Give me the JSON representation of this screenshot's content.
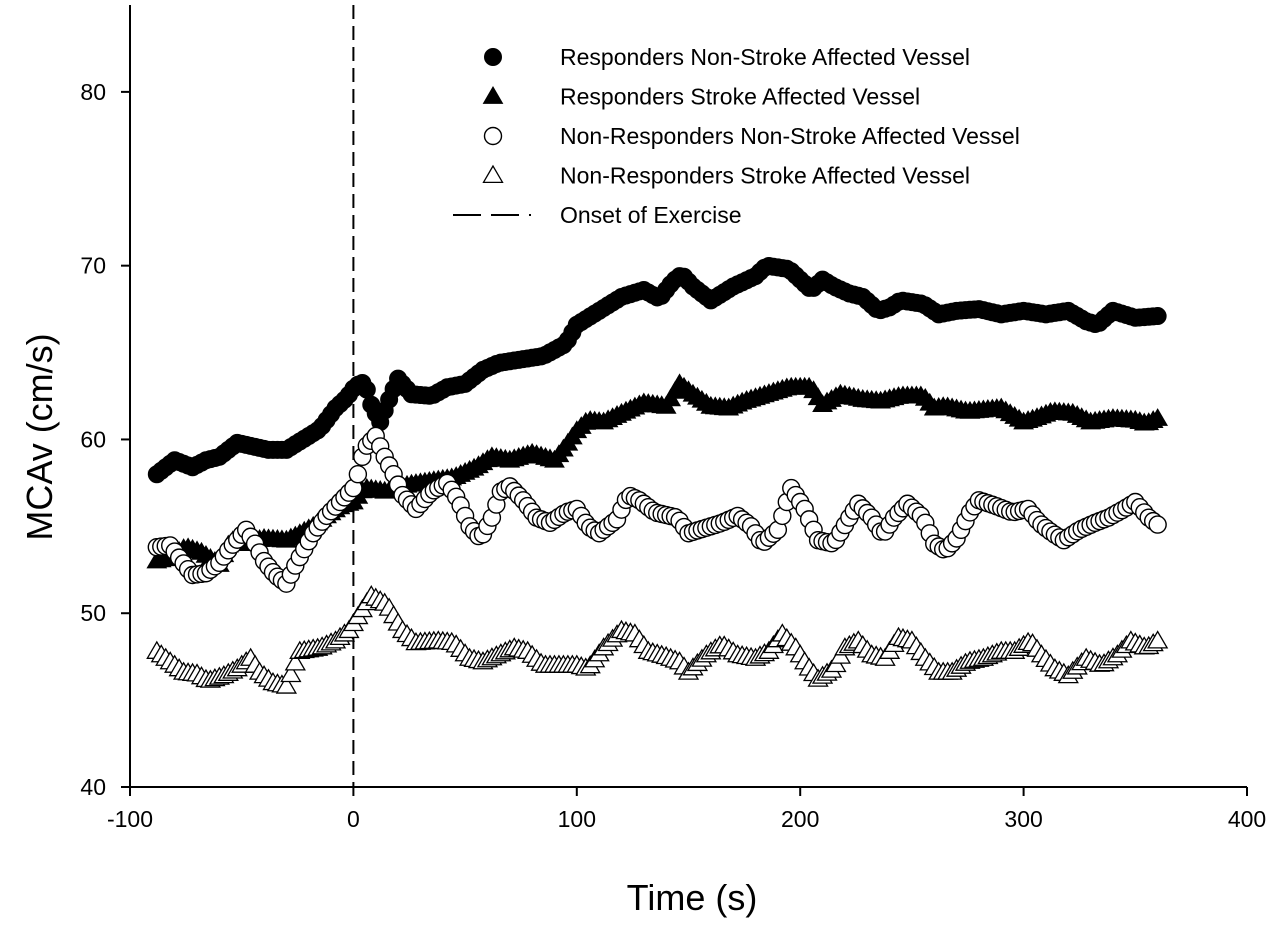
{
  "chart_data": {
    "type": "scatter",
    "title": "",
    "xlabel": "Time (s)",
    "ylabel": "MCAv (cm/s)",
    "xlim": [
      -100,
      400
    ],
    "ylim": [
      40,
      85
    ],
    "x_ticks": [
      -100,
      0,
      100,
      200,
      300,
      400
    ],
    "y_ticks": [
      40,
      50,
      60,
      70,
      80
    ],
    "x_tick_labels": [
      "-100",
      "0",
      "100",
      "200",
      "300",
      "400"
    ],
    "y_tick_labels": [
      "40",
      "50",
      "60",
      "70",
      "80"
    ],
    "grid": false,
    "legend_position": "top-right",
    "reference_lines": [
      {
        "orientation": "vertical",
        "x": 0,
        "style": "dashed",
        "legend": "Onset of Exercise"
      }
    ],
    "legend": [
      {
        "label": "Responders Non-Stroke Affected Vessel",
        "marker": "circle-filled"
      },
      {
        "label": "Responders Stroke Affected Vessel",
        "marker": "triangle-filled"
      },
      {
        "label": "Non-Responders Non-Stroke Affected Vessel",
        "marker": "circle-open"
      },
      {
        "label": "Non-Responders Stroke Affected Vessel",
        "marker": "triangle-open"
      },
      {
        "label": "Onset of Exercise",
        "marker": "dashed-line"
      }
    ],
    "series": [
      {
        "name": "Responders Non-Stroke Affected Vessel",
        "marker": "circle-filled",
        "keypoints": [
          [
            -88,
            58.0
          ],
          [
            -80,
            58.8
          ],
          [
            -72,
            58.4
          ],
          [
            -66,
            58.8
          ],
          [
            -60,
            59.0
          ],
          [
            -52,
            59.8
          ],
          [
            -45,
            59.6
          ],
          [
            -38,
            59.4
          ],
          [
            -30,
            59.4
          ],
          [
            -25,
            59.8
          ],
          [
            -20,
            60.2
          ],
          [
            -15,
            60.6
          ],
          [
            -8,
            61.8
          ],
          [
            -3,
            62.4
          ],
          [
            1,
            63.1
          ],
          [
            5,
            63.3
          ],
          [
            8,
            62.0
          ],
          [
            12,
            61.0
          ],
          [
            15,
            62.0
          ],
          [
            20,
            63.5
          ],
          [
            26,
            62.6
          ],
          [
            35,
            62.5
          ],
          [
            42,
            63.0
          ],
          [
            50,
            63.2
          ],
          [
            58,
            64.0
          ],
          [
            65,
            64.4
          ],
          [
            75,
            64.6
          ],
          [
            85,
            64.8
          ],
          [
            95,
            65.5
          ],
          [
            100,
            66.6
          ],
          [
            110,
            67.4
          ],
          [
            120,
            68.2
          ],
          [
            130,
            68.6
          ],
          [
            137,
            68.1
          ],
          [
            143,
            69.1
          ],
          [
            147,
            69.5
          ],
          [
            152,
            68.8
          ],
          [
            160,
            68.0
          ],
          [
            170,
            68.8
          ],
          [
            180,
            69.4
          ],
          [
            185,
            70.0
          ],
          [
            195,
            69.8
          ],
          [
            200,
            69.2
          ],
          [
            205,
            68.6
          ],
          [
            210,
            69.2
          ],
          [
            215,
            68.8
          ],
          [
            222,
            68.4
          ],
          [
            228,
            68.2
          ],
          [
            235,
            67.4
          ],
          [
            240,
            67.6
          ],
          [
            245,
            68.0
          ],
          [
            255,
            67.8
          ],
          [
            262,
            67.2
          ],
          [
            270,
            67.4
          ],
          [
            280,
            67.5
          ],
          [
            290,
            67.2
          ],
          [
            300,
            67.4
          ],
          [
            310,
            67.2
          ],
          [
            320,
            67.4
          ],
          [
            328,
            66.8
          ],
          [
            333,
            66.6
          ],
          [
            340,
            67.4
          ],
          [
            350,
            67.0
          ],
          [
            360,
            67.1
          ]
        ]
      },
      {
        "name": "Responders Stroke Affected Vessel",
        "marker": "triangle-filled",
        "keypoints": [
          [
            -88,
            53.0
          ],
          [
            -82,
            53.2
          ],
          [
            -75,
            53.8
          ],
          [
            -68,
            53.5
          ],
          [
            -60,
            52.8
          ],
          [
            -55,
            54.2
          ],
          [
            -50,
            54.0
          ],
          [
            -40,
            54.3
          ],
          [
            -30,
            54.2
          ],
          [
            -25,
            54.5
          ],
          [
            -18,
            55.0
          ],
          [
            -12,
            55.6
          ],
          [
            -5,
            56.2
          ],
          [
            0,
            56.4
          ],
          [
            5,
            57.2
          ],
          [
            15,
            57.0
          ],
          [
            25,
            57.4
          ],
          [
            35,
            57.6
          ],
          [
            45,
            57.8
          ],
          [
            55,
            58.4
          ],
          [
            62,
            59.0
          ],
          [
            70,
            58.8
          ],
          [
            80,
            59.2
          ],
          [
            90,
            58.8
          ],
          [
            95,
            59.6
          ],
          [
            100,
            60.5
          ],
          [
            105,
            61.1
          ],
          [
            112,
            61.0
          ],
          [
            120,
            61.5
          ],
          [
            130,
            62.1
          ],
          [
            140,
            61.9
          ],
          [
            146,
            63.2
          ],
          [
            152,
            62.6
          ],
          [
            160,
            61.9
          ],
          [
            168,
            61.8
          ],
          [
            175,
            62.2
          ],
          [
            185,
            62.6
          ],
          [
            195,
            63.0
          ],
          [
            205,
            63.0
          ],
          [
            210,
            62.0
          ],
          [
            218,
            62.6
          ],
          [
            228,
            62.3
          ],
          [
            236,
            62.2
          ],
          [
            245,
            62.5
          ],
          [
            255,
            62.5
          ],
          [
            260,
            61.8
          ],
          [
            265,
            61.9
          ],
          [
            275,
            61.6
          ],
          [
            290,
            61.8
          ],
          [
            300,
            61.0
          ],
          [
            305,
            61.2
          ],
          [
            313,
            61.6
          ],
          [
            322,
            61.5
          ],
          [
            330,
            61.0
          ],
          [
            340,
            61.2
          ],
          [
            350,
            61.1
          ],
          [
            355,
            60.9
          ],
          [
            360,
            61.2
          ]
        ]
      },
      {
        "name": "Non-Responders Non-Stroke Affected Vessel",
        "marker": "circle-open",
        "keypoints": [
          [
            -88,
            53.8
          ],
          [
            -82,
            53.9
          ],
          [
            -78,
            53.2
          ],
          [
            -72,
            52.2
          ],
          [
            -66,
            52.3
          ],
          [
            -60,
            52.9
          ],
          [
            -55,
            53.8
          ],
          [
            -48,
            54.8
          ],
          [
            -44,
            54.0
          ],
          [
            -40,
            53.0
          ],
          [
            -35,
            52.2
          ],
          [
            -30,
            51.7
          ],
          [
            -25,
            53.0
          ],
          [
            -18,
            54.6
          ],
          [
            -12,
            55.6
          ],
          [
            -6,
            56.4
          ],
          [
            0,
            57.2
          ],
          [
            2,
            58.0
          ],
          [
            5,
            59.5
          ],
          [
            10,
            60.2
          ],
          [
            14,
            59.0
          ],
          [
            18,
            58.0
          ],
          [
            22,
            56.8
          ],
          [
            28,
            56.0
          ],
          [
            35,
            57.0
          ],
          [
            42,
            57.5
          ],
          [
            47,
            56.5
          ],
          [
            52,
            55.0
          ],
          [
            57,
            54.3
          ],
          [
            62,
            55.5
          ],
          [
            66,
            57.0
          ],
          [
            70,
            57.3
          ],
          [
            76,
            56.5
          ],
          [
            82,
            55.5
          ],
          [
            88,
            55.2
          ],
          [
            95,
            55.8
          ],
          [
            100,
            56.0
          ],
          [
            105,
            55.0
          ],
          [
            110,
            54.6
          ],
          [
            118,
            55.4
          ],
          [
            123,
            56.8
          ],
          [
            128,
            56.5
          ],
          [
            135,
            55.8
          ],
          [
            145,
            55.5
          ],
          [
            150,
            54.6
          ],
          [
            155,
            54.8
          ],
          [
            165,
            55.2
          ],
          [
            172,
            55.6
          ],
          [
            178,
            55.0
          ],
          [
            183,
            54.0
          ],
          [
            190,
            54.8
          ],
          [
            196,
            57.2
          ],
          [
            202,
            56.0
          ],
          [
            208,
            54.2
          ],
          [
            215,
            54.0
          ],
          [
            222,
            55.5
          ],
          [
            226,
            56.3
          ],
          [
            232,
            55.5
          ],
          [
            237,
            54.5
          ],
          [
            242,
            55.5
          ],
          [
            248,
            56.3
          ],
          [
            255,
            55.5
          ],
          [
            260,
            54.0
          ],
          [
            265,
            53.6
          ],
          [
            270,
            54.3
          ],
          [
            276,
            55.8
          ],
          [
            280,
            56.5
          ],
          [
            287,
            56.2
          ],
          [
            295,
            55.8
          ],
          [
            302,
            56.0
          ],
          [
            307,
            55.2
          ],
          [
            313,
            54.6
          ],
          [
            318,
            54.2
          ],
          [
            325,
            54.8
          ],
          [
            332,
            55.2
          ],
          [
            338,
            55.5
          ],
          [
            345,
            56.0
          ],
          [
            350,
            56.4
          ],
          [
            356,
            55.5
          ],
          [
            360,
            55.1
          ]
        ]
      },
      {
        "name": "Non-Responders Stroke Affected Vessel",
        "marker": "triangle-open",
        "keypoints": [
          [
            -88,
            47.8
          ],
          [
            -82,
            47.2
          ],
          [
            -76,
            46.6
          ],
          [
            -70,
            46.5
          ],
          [
            -65,
            46.1
          ],
          [
            -58,
            46.4
          ],
          [
            -52,
            46.8
          ],
          [
            -46,
            47.4
          ],
          [
            -42,
            46.6
          ],
          [
            -36,
            46.0
          ],
          [
            -30,
            45.8
          ],
          [
            -24,
            47.8
          ],
          [
            -15,
            48.0
          ],
          [
            -8,
            48.4
          ],
          [
            -2,
            49.0
          ],
          [
            3,
            50.0
          ],
          [
            8,
            51.0
          ],
          [
            15,
            50.5
          ],
          [
            22,
            49.0
          ],
          [
            28,
            48.3
          ],
          [
            38,
            48.4
          ],
          [
            45,
            48.3
          ],
          [
            52,
            47.4
          ],
          [
            58,
            47.2
          ],
          [
            65,
            47.6
          ],
          [
            72,
            48.0
          ],
          [
            78,
            47.8
          ],
          [
            85,
            47.0
          ],
          [
            92,
            47.0
          ],
          [
            100,
            47.0
          ],
          [
            105,
            46.8
          ],
          [
            112,
            48.0
          ],
          [
            120,
            49.0
          ],
          [
            126,
            48.8
          ],
          [
            132,
            47.8
          ],
          [
            140,
            47.5
          ],
          [
            146,
            47.2
          ],
          [
            150,
            46.6
          ],
          [
            158,
            47.6
          ],
          [
            165,
            48.2
          ],
          [
            172,
            47.6
          ],
          [
            180,
            47.4
          ],
          [
            186,
            47.8
          ],
          [
            192,
            48.8
          ],
          [
            198,
            48.0
          ],
          [
            203,
            47.0
          ],
          [
            208,
            46.2
          ],
          [
            215,
            46.8
          ],
          [
            220,
            48.0
          ],
          [
            226,
            48.4
          ],
          [
            232,
            47.6
          ],
          [
            238,
            47.4
          ],
          [
            244,
            48.6
          ],
          [
            250,
            48.4
          ],
          [
            256,
            47.4
          ],
          [
            262,
            46.6
          ],
          [
            268,
            46.6
          ],
          [
            275,
            47.2
          ],
          [
            282,
            47.4
          ],
          [
            290,
            47.8
          ],
          [
            296,
            47.8
          ],
          [
            303,
            48.4
          ],
          [
            308,
            47.6
          ],
          [
            314,
            46.8
          ],
          [
            320,
            46.4
          ],
          [
            328,
            47.4
          ],
          [
            335,
            47.0
          ],
          [
            342,
            47.6
          ],
          [
            348,
            48.4
          ],
          [
            355,
            48.0
          ],
          [
            360,
            48.4
          ]
        ]
      }
    ]
  }
}
